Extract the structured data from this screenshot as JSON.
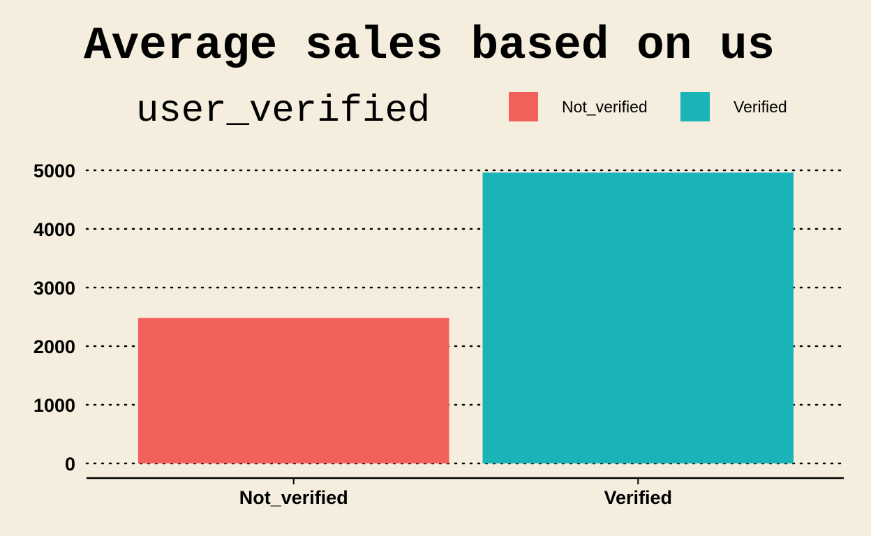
{
  "chart_data": {
    "type": "bar",
    "title": "Average sales based on us",
    "xlabel": "",
    "ylabel": "",
    "categories": [
      "Not_verified",
      "Verified"
    ],
    "values": [
      2480,
      4960
    ],
    "colors": [
      "#F2605C",
      "#19B3B8"
    ],
    "ylim": [
      0,
      5000
    ],
    "yticks": [
      0,
      1000,
      2000,
      3000,
      4000,
      5000
    ],
    "grid": true,
    "grid_style": "dotted horizontal",
    "legend": {
      "title": "user_verified",
      "placement": "top",
      "entries": [
        "Not_verified",
        "Verified"
      ]
    }
  }
}
